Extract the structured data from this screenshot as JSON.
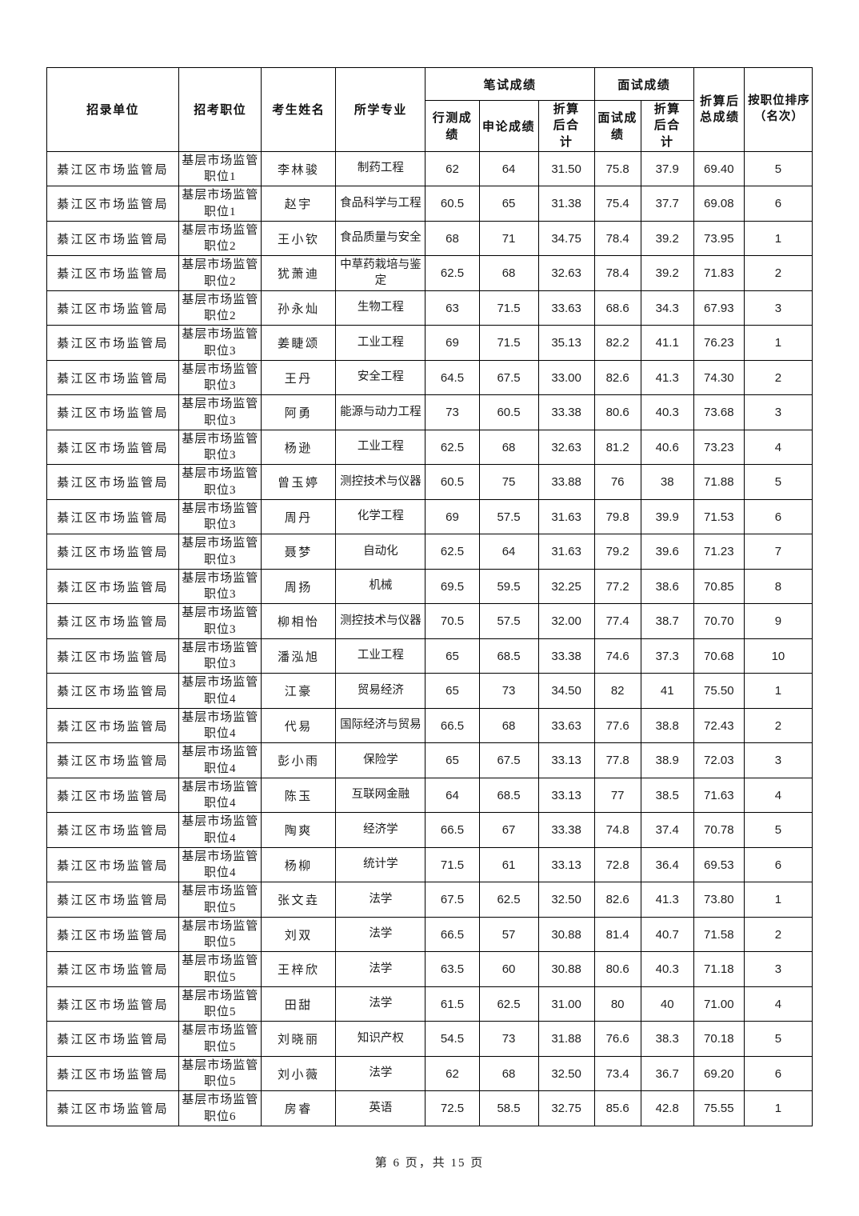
{
  "page": {
    "footer_text": "第 6 页，共 15 页"
  },
  "table": {
    "group_headers": {
      "written": "笔试成绩",
      "interview": "面试成绩"
    },
    "headers": {
      "unit": "招录单位",
      "position": "招考职位",
      "name": "考生姓名",
      "major": "所学专业",
      "xingce": "行测成绩",
      "shenlun": "申论成绩",
      "written_total": "折算后合计",
      "interview": "面试成绩",
      "interview_total": "折算后合计",
      "final_total": "折算后总成绩",
      "rank": "按职位排序（名次）"
    },
    "rows": [
      {
        "unit": "綦江区市场监管局",
        "position": "基层市场监管职位1",
        "name": "李林骏",
        "major": "制药工程",
        "xingce": "62",
        "shenlun": "64",
        "written_total": "31.50",
        "interview": "75.8",
        "interview_total": "37.9",
        "final_total": "69.40",
        "rank": "5"
      },
      {
        "unit": "綦江区市场监管局",
        "position": "基层市场监管职位1",
        "name": "赵宇",
        "major": "食品科学与工程",
        "xingce": "60.5",
        "shenlun": "65",
        "written_total": "31.38",
        "interview": "75.4",
        "interview_total": "37.7",
        "final_total": "69.08",
        "rank": "6"
      },
      {
        "unit": "綦江区市场监管局",
        "position": "基层市场监管职位2",
        "name": "王小钦",
        "major": "食品质量与安全",
        "xingce": "68",
        "shenlun": "71",
        "written_total": "34.75",
        "interview": "78.4",
        "interview_total": "39.2",
        "final_total": "73.95",
        "rank": "1"
      },
      {
        "unit": "綦江区市场监管局",
        "position": "基层市场监管职位2",
        "name": "犹萧迪",
        "major": "中草药栽培与鉴定",
        "xingce": "62.5",
        "shenlun": "68",
        "written_total": "32.63",
        "interview": "78.4",
        "interview_total": "39.2",
        "final_total": "71.83",
        "rank": "2"
      },
      {
        "unit": "綦江区市场监管局",
        "position": "基层市场监管职位2",
        "name": "孙永灿",
        "major": "生物工程",
        "xingce": "63",
        "shenlun": "71.5",
        "written_total": "33.63",
        "interview": "68.6",
        "interview_total": "34.3",
        "final_total": "67.93",
        "rank": "3"
      },
      {
        "unit": "綦江区市场监管局",
        "position": "基层市场监管职位3",
        "name": "姜睫颂",
        "major": "工业工程",
        "xingce": "69",
        "shenlun": "71.5",
        "written_total": "35.13",
        "interview": "82.2",
        "interview_total": "41.1",
        "final_total": "76.23",
        "rank": "1"
      },
      {
        "unit": "綦江区市场监管局",
        "position": "基层市场监管职位3",
        "name": "王丹",
        "major": "安全工程",
        "xingce": "64.5",
        "shenlun": "67.5",
        "written_total": "33.00",
        "interview": "82.6",
        "interview_total": "41.3",
        "final_total": "74.30",
        "rank": "2"
      },
      {
        "unit": "綦江区市场监管局",
        "position": "基层市场监管职位3",
        "name": "阿勇",
        "major": "能源与动力工程",
        "xingce": "73",
        "shenlun": "60.5",
        "written_total": "33.38",
        "interview": "80.6",
        "interview_total": "40.3",
        "final_total": "73.68",
        "rank": "3"
      },
      {
        "unit": "綦江区市场监管局",
        "position": "基层市场监管职位3",
        "name": "杨逊",
        "major": "工业工程",
        "xingce": "62.5",
        "shenlun": "68",
        "written_total": "32.63",
        "interview": "81.2",
        "interview_total": "40.6",
        "final_total": "73.23",
        "rank": "4"
      },
      {
        "unit": "綦江区市场监管局",
        "position": "基层市场监管职位3",
        "name": "曾玉婷",
        "major": "测控技术与仪器",
        "xingce": "60.5",
        "shenlun": "75",
        "written_total": "33.88",
        "interview": "76",
        "interview_total": "38",
        "final_total": "71.88",
        "rank": "5"
      },
      {
        "unit": "綦江区市场监管局",
        "position": "基层市场监管职位3",
        "name": "周丹",
        "major": "化学工程",
        "xingce": "69",
        "shenlun": "57.5",
        "written_total": "31.63",
        "interview": "79.8",
        "interview_total": "39.9",
        "final_total": "71.53",
        "rank": "6"
      },
      {
        "unit": "綦江区市场监管局",
        "position": "基层市场监管职位3",
        "name": "聂梦",
        "major": "自动化",
        "xingce": "62.5",
        "shenlun": "64",
        "written_total": "31.63",
        "interview": "79.2",
        "interview_total": "39.6",
        "final_total": "71.23",
        "rank": "7"
      },
      {
        "unit": "綦江区市场监管局",
        "position": "基层市场监管职位3",
        "name": "周扬",
        "major": "机械",
        "xingce": "69.5",
        "shenlun": "59.5",
        "written_total": "32.25",
        "interview": "77.2",
        "interview_total": "38.6",
        "final_total": "70.85",
        "rank": "8"
      },
      {
        "unit": "綦江区市场监管局",
        "position": "基层市场监管职位3",
        "name": "柳相怡",
        "major": "测控技术与仪器",
        "xingce": "70.5",
        "shenlun": "57.5",
        "written_total": "32.00",
        "interview": "77.4",
        "interview_total": "38.7",
        "final_total": "70.70",
        "rank": "9"
      },
      {
        "unit": "綦江区市场监管局",
        "position": "基层市场监管职位3",
        "name": "潘泓旭",
        "major": "工业工程",
        "xingce": "65",
        "shenlun": "68.5",
        "written_total": "33.38",
        "interview": "74.6",
        "interview_total": "37.3",
        "final_total": "70.68",
        "rank": "10"
      },
      {
        "unit": "綦江区市场监管局",
        "position": "基层市场监管职位4",
        "name": "江豪",
        "major": "贸易经济",
        "xingce": "65",
        "shenlun": "73",
        "written_total": "34.50",
        "interview": "82",
        "interview_total": "41",
        "final_total": "75.50",
        "rank": "1"
      },
      {
        "unit": "綦江区市场监管局",
        "position": "基层市场监管职位4",
        "name": "代易",
        "major": "国际经济与贸易",
        "xingce": "66.5",
        "shenlun": "68",
        "written_total": "33.63",
        "interview": "77.6",
        "interview_total": "38.8",
        "final_total": "72.43",
        "rank": "2"
      },
      {
        "unit": "綦江区市场监管局",
        "position": "基层市场监管职位4",
        "name": "彭小雨",
        "major": "保险学",
        "xingce": "65",
        "shenlun": "67.5",
        "written_total": "33.13",
        "interview": "77.8",
        "interview_total": "38.9",
        "final_total": "72.03",
        "rank": "3"
      },
      {
        "unit": "綦江区市场监管局",
        "position": "基层市场监管职位4",
        "name": "陈玉",
        "major": "互联网金融",
        "xingce": "64",
        "shenlun": "68.5",
        "written_total": "33.13",
        "interview": "77",
        "interview_total": "38.5",
        "final_total": "71.63",
        "rank": "4"
      },
      {
        "unit": "綦江区市场监管局",
        "position": "基层市场监管职位4",
        "name": "陶爽",
        "major": "经济学",
        "xingce": "66.5",
        "shenlun": "67",
        "written_total": "33.38",
        "interview": "74.8",
        "interview_total": "37.4",
        "final_total": "70.78",
        "rank": "5"
      },
      {
        "unit": "綦江区市场监管局",
        "position": "基层市场监管职位4",
        "name": "杨柳",
        "major": "统计学",
        "xingce": "71.5",
        "shenlun": "61",
        "written_total": "33.13",
        "interview": "72.8",
        "interview_total": "36.4",
        "final_total": "69.53",
        "rank": "6"
      },
      {
        "unit": "綦江区市场监管局",
        "position": "基层市场监管职位5",
        "name": "张文垚",
        "major": "法学",
        "xingce": "67.5",
        "shenlun": "62.5",
        "written_total": "32.50",
        "interview": "82.6",
        "interview_total": "41.3",
        "final_total": "73.80",
        "rank": "1"
      },
      {
        "unit": "綦江区市场监管局",
        "position": "基层市场监管职位5",
        "name": "刘双",
        "major": "法学",
        "xingce": "66.5",
        "shenlun": "57",
        "written_total": "30.88",
        "interview": "81.4",
        "interview_total": "40.7",
        "final_total": "71.58",
        "rank": "2"
      },
      {
        "unit": "綦江区市场监管局",
        "position": "基层市场监管职位5",
        "name": "王梓欣",
        "major": "法学",
        "xingce": "63.5",
        "shenlun": "60",
        "written_total": "30.88",
        "interview": "80.6",
        "interview_total": "40.3",
        "final_total": "71.18",
        "rank": "3"
      },
      {
        "unit": "綦江区市场监管局",
        "position": "基层市场监管职位5",
        "name": "田甜",
        "major": "法学",
        "xingce": "61.5",
        "shenlun": "62.5",
        "written_total": "31.00",
        "interview": "80",
        "interview_total": "40",
        "final_total": "71.00",
        "rank": "4"
      },
      {
        "unit": "綦江区市场监管局",
        "position": "基层市场监管职位5",
        "name": "刘晓丽",
        "major": "知识产权",
        "xingce": "54.5",
        "shenlun": "73",
        "written_total": "31.88",
        "interview": "76.6",
        "interview_total": "38.3",
        "final_total": "70.18",
        "rank": "5"
      },
      {
        "unit": "綦江区市场监管局",
        "position": "基层市场监管职位5",
        "name": "刘小薇",
        "major": "法学",
        "xingce": "62",
        "shenlun": "68",
        "written_total": "32.50",
        "interview": "73.4",
        "interview_total": "36.7",
        "final_total": "69.20",
        "rank": "6"
      },
      {
        "unit": "綦江区市场监管局",
        "position": "基层市场监管职位6",
        "name": "房睿",
        "major": "英语",
        "xingce": "72.5",
        "shenlun": "58.5",
        "written_total": "32.75",
        "interview": "85.6",
        "interview_total": "42.8",
        "final_total": "75.55",
        "rank": "1"
      }
    ]
  }
}
